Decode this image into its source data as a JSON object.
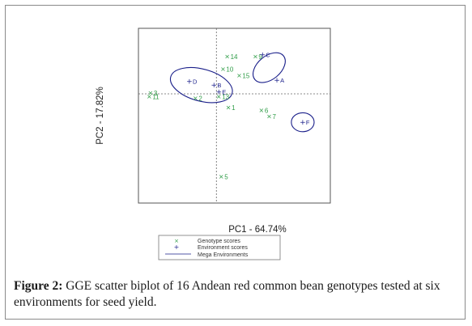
{
  "chart_data": {
    "type": "scatter",
    "xlabel": "PC1 - 64.74%",
    "ylabel": "PC2 - 17.82%",
    "xlim": [
      -1.3,
      1.9
    ],
    "ylim": [
      -1.5,
      0.9
    ],
    "grid": false,
    "genotype_color": "#2e9c46",
    "environment_color": "#1a1f8a",
    "genotypes": [
      {
        "label": "1",
        "x": 0.2,
        "y": -0.19
      },
      {
        "label": "2",
        "x": -0.35,
        "y": -0.06
      },
      {
        "label": "3",
        "x": -1.1,
        "y": 0.01
      },
      {
        "label": "5",
        "x": 0.08,
        "y": -1.14
      },
      {
        "label": "6",
        "x": 0.75,
        "y": -0.23
      },
      {
        "label": "7",
        "x": 0.88,
        "y": -0.31
      },
      {
        "label": "9",
        "x": 0.65,
        "y": 0.51
      },
      {
        "label": "10",
        "x": 0.11,
        "y": 0.34
      },
      {
        "label": "11",
        "x": -1.12,
        "y": -0.04
      },
      {
        "label": "13",
        "x": 0.04,
        "y": -0.04
      },
      {
        "label": "14",
        "x": 0.18,
        "y": 0.51
      },
      {
        "label": "15",
        "x": 0.38,
        "y": 0.25
      }
    ],
    "environments": [
      {
        "label": "A",
        "x": 1.01,
        "y": 0.19
      },
      {
        "label": "B",
        "x": -0.04,
        "y": 0.12
      },
      {
        "label": "C",
        "x": 0.77,
        "y": 0.54
      },
      {
        "label": "D",
        "x": -0.45,
        "y": 0.17
      },
      {
        "label": "E",
        "x": 0.04,
        "y": 0.03
      },
      {
        "label": "F",
        "x": 1.44,
        "y": -0.39
      }
    ],
    "mega_environments": [
      {
        "cx": -0.25,
        "cy": 0.12,
        "rx": 0.53,
        "ry": 0.22,
        "angle": 15
      },
      {
        "cx": 0.88,
        "cy": 0.36,
        "rx": 0.31,
        "ry": 0.16,
        "angle": -40
      },
      {
        "cx": 1.44,
        "cy": -0.39,
        "rx": 0.19,
        "ry": 0.13,
        "angle": 0
      }
    ],
    "legend": {
      "position": "bottom",
      "genotype_label": "Genotype scores",
      "environment_label": "Environment scores",
      "mega_label": "Mega Environments"
    }
  },
  "caption": {
    "label": "Figure 2:",
    "text": "GGE scatter biplot of 16 Andean red common bean genotypes tested at six environments for seed yield."
  }
}
